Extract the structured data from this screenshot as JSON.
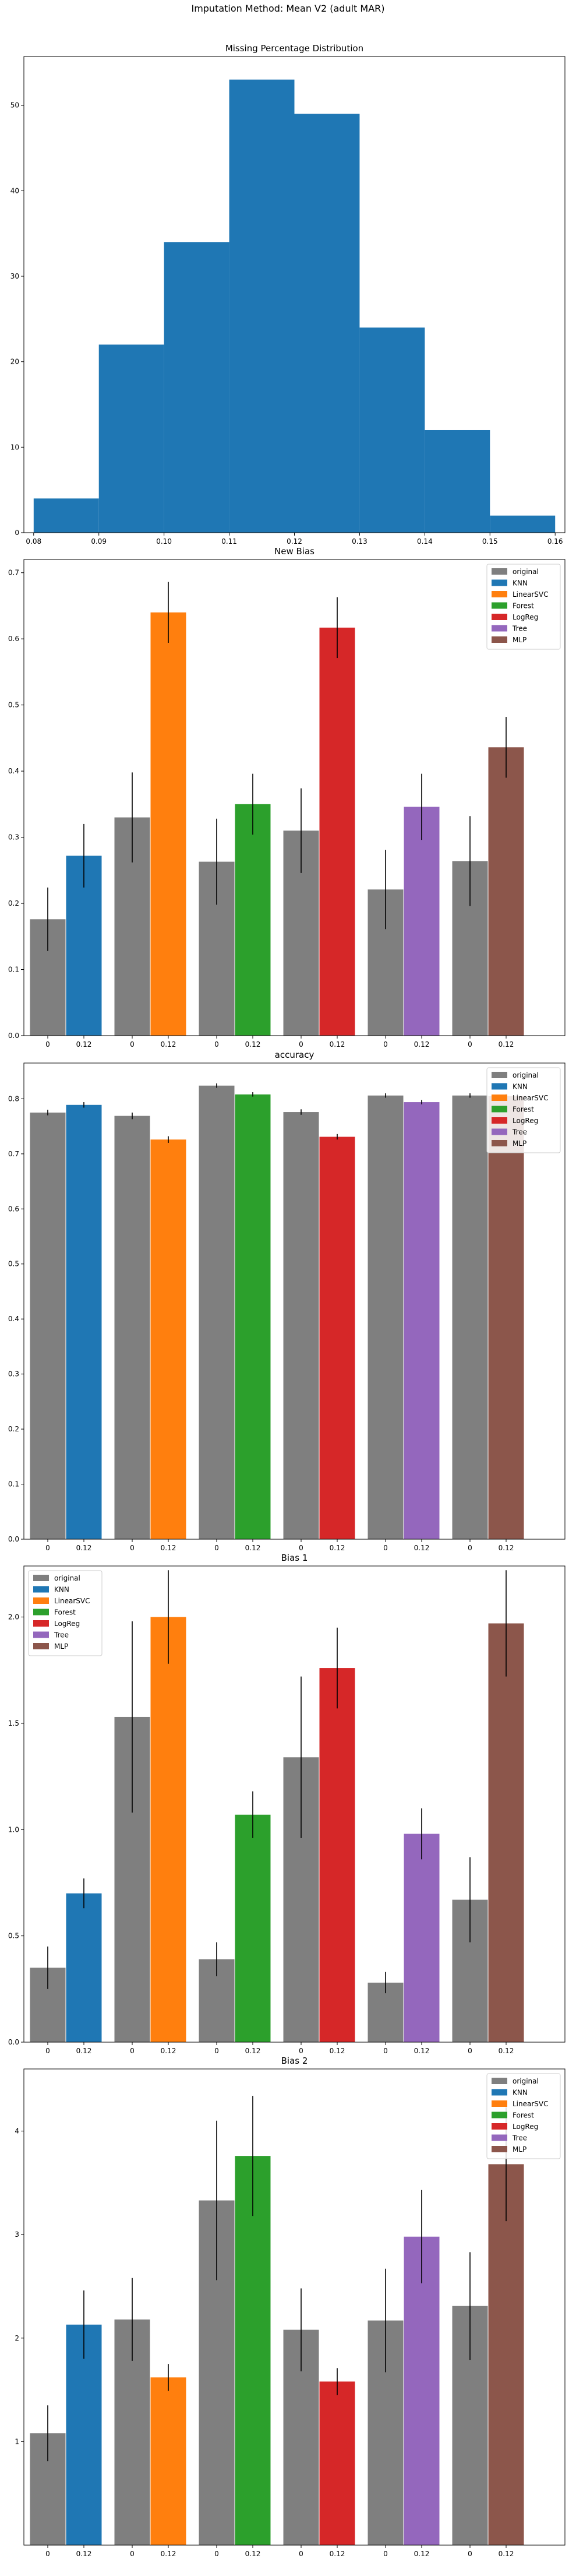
{
  "suptitle": "Imputation Method: Mean V2 (adult MAR)",
  "colors": {
    "original": "#7f7f7f",
    "KNN": "#1f77b4",
    "LinearSVC": "#ff7f0e",
    "Forest": "#2ca02c",
    "LogReg": "#d62728",
    "Tree": "#9467bd",
    "MLP": "#8c564b",
    "errorbar": "#000000"
  },
  "chart_data": [
    {
      "type": "bar",
      "title": "Missing Percentage Distribution",
      "bins": [
        0.08,
        0.09,
        0.1,
        0.11,
        0.12,
        0.13,
        0.14,
        0.15,
        0.16
      ],
      "counts": [
        4,
        22,
        34,
        53,
        49,
        24,
        12,
        2
      ],
      "xlim": [
        0.0785,
        0.1615
      ],
      "ylim": [
        0,
        55.7
      ],
      "xticks": [
        0.08,
        0.09,
        0.1,
        0.11,
        0.12,
        0.13,
        0.14,
        0.15,
        0.16
      ],
      "xtick_labels": [
        "0.08",
        "0.09",
        "0.10",
        "0.11",
        "0.12",
        "0.13",
        "0.14",
        "0.15",
        "0.16"
      ],
      "yticks": [
        0,
        10,
        20,
        30,
        40,
        50
      ],
      "ytick_labels": [
        "0",
        "10",
        "20",
        "30",
        "40",
        "50"
      ],
      "grid": false
    },
    {
      "type": "bar",
      "title": "New Bias",
      "models": [
        "KNN",
        "LinearSVC",
        "Forest",
        "LogReg",
        "Tree",
        "MLP"
      ],
      "categories": [
        "0",
        "0.12"
      ],
      "original": [
        0.176,
        0.33,
        0.263,
        0.31,
        0.221,
        0.264
      ],
      "original_err": [
        0.048,
        0.068,
        0.065,
        0.064,
        0.06,
        0.068
      ],
      "imputed": [
        0.272,
        0.64,
        0.35,
        0.617,
        0.346,
        0.436
      ],
      "imputed_err": [
        0.048,
        0.046,
        0.046,
        0.046,
        0.05,
        0.046
      ],
      "ylim": [
        0,
        0.72
      ],
      "yticks": [
        0,
        0.1,
        0.2,
        0.3,
        0.4,
        0.5,
        0.6,
        0.7
      ],
      "ytick_labels": [
        "0.0",
        "0.1",
        "0.2",
        "0.3",
        "0.4",
        "0.5",
        "0.6",
        "0.7"
      ],
      "legend": [
        "original",
        "KNN",
        "LinearSVC",
        "Forest",
        "LogReg",
        "Tree",
        "MLP"
      ],
      "legend_loc": "upper right",
      "grid": false
    },
    {
      "type": "bar",
      "title": "accuracy",
      "models": [
        "KNN",
        "LinearSVC",
        "Forest",
        "LogReg",
        "Tree",
        "MLP"
      ],
      "categories": [
        "0",
        "0.12"
      ],
      "original": [
        0.775,
        0.769,
        0.824,
        0.776,
        0.806,
        0.806
      ],
      "original_err": [
        0.005,
        0.006,
        0.004,
        0.005,
        0.004,
        0.004
      ],
      "imputed": [
        0.789,
        0.726,
        0.808,
        0.731,
        0.794,
        0.805
      ],
      "imputed_err": [
        0.005,
        0.006,
        0.004,
        0.005,
        0.004,
        0.004
      ],
      "ylim": [
        0,
        0.865
      ],
      "yticks": [
        0,
        0.1,
        0.2,
        0.3,
        0.4,
        0.5,
        0.6,
        0.7,
        0.8
      ],
      "ytick_labels": [
        "0.0",
        "0.1",
        "0.2",
        "0.3",
        "0.4",
        "0.5",
        "0.6",
        "0.7",
        "0.8"
      ],
      "legend": [
        "original",
        "KNN",
        "LinearSVC",
        "Forest",
        "LogReg",
        "Tree",
        "MLP"
      ],
      "legend_loc": "upper right",
      "grid": false
    },
    {
      "type": "bar",
      "title": "Bias 1",
      "models": [
        "KNN",
        "LinearSVC",
        "Forest",
        "LogReg",
        "Tree",
        "MLP"
      ],
      "categories": [
        "0",
        "0.12"
      ],
      "original": [
        0.35,
        1.53,
        0.39,
        1.34,
        0.28,
        0.67
      ],
      "original_err": [
        0.1,
        0.45,
        0.08,
        0.38,
        0.05,
        0.2
      ],
      "imputed": [
        0.7,
        2.0,
        1.07,
        1.76,
        0.98,
        1.97
      ],
      "imputed_err": [
        0.07,
        0.22,
        0.11,
        0.19,
        0.12,
        0.25
      ],
      "ylim": [
        0,
        2.24
      ],
      "yticks": [
        0,
        0.5,
        1.0,
        1.5,
        2.0
      ],
      "ytick_labels": [
        "0.0",
        "0.5",
        "1.0",
        "1.5",
        "2.0"
      ],
      "legend": [
        "original",
        "KNN",
        "LinearSVC",
        "Forest",
        "LogReg",
        "Tree",
        "MLP"
      ],
      "legend_loc": "upper left",
      "grid": false
    },
    {
      "type": "bar",
      "title": "Bias 2",
      "models": [
        "KNN",
        "LinearSVC",
        "Forest",
        "LogReg",
        "Tree",
        "MLP"
      ],
      "categories": [
        "0",
        "0.12"
      ],
      "original": [
        1.08,
        2.18,
        3.33,
        2.08,
        2.17,
        2.31
      ],
      "original_err": [
        0.27,
        0.4,
        0.77,
        0.4,
        0.5,
        0.52
      ],
      "imputed": [
        2.13,
        1.62,
        3.76,
        1.58,
        2.98,
        3.68
      ],
      "imputed_err": [
        0.33,
        0.13,
        0.58,
        0.13,
        0.45,
        0.55
      ],
      "ylim": [
        0,
        4.6
      ],
      "yticks": [
        1,
        2,
        3,
        4
      ],
      "ytick_labels": [
        "1",
        "2",
        "3",
        "4"
      ],
      "legend": [
        "original",
        "KNN",
        "LinearSVC",
        "Forest",
        "LogReg",
        "Tree",
        "MLP"
      ],
      "legend_loc": "upper right",
      "grid": false
    }
  ]
}
